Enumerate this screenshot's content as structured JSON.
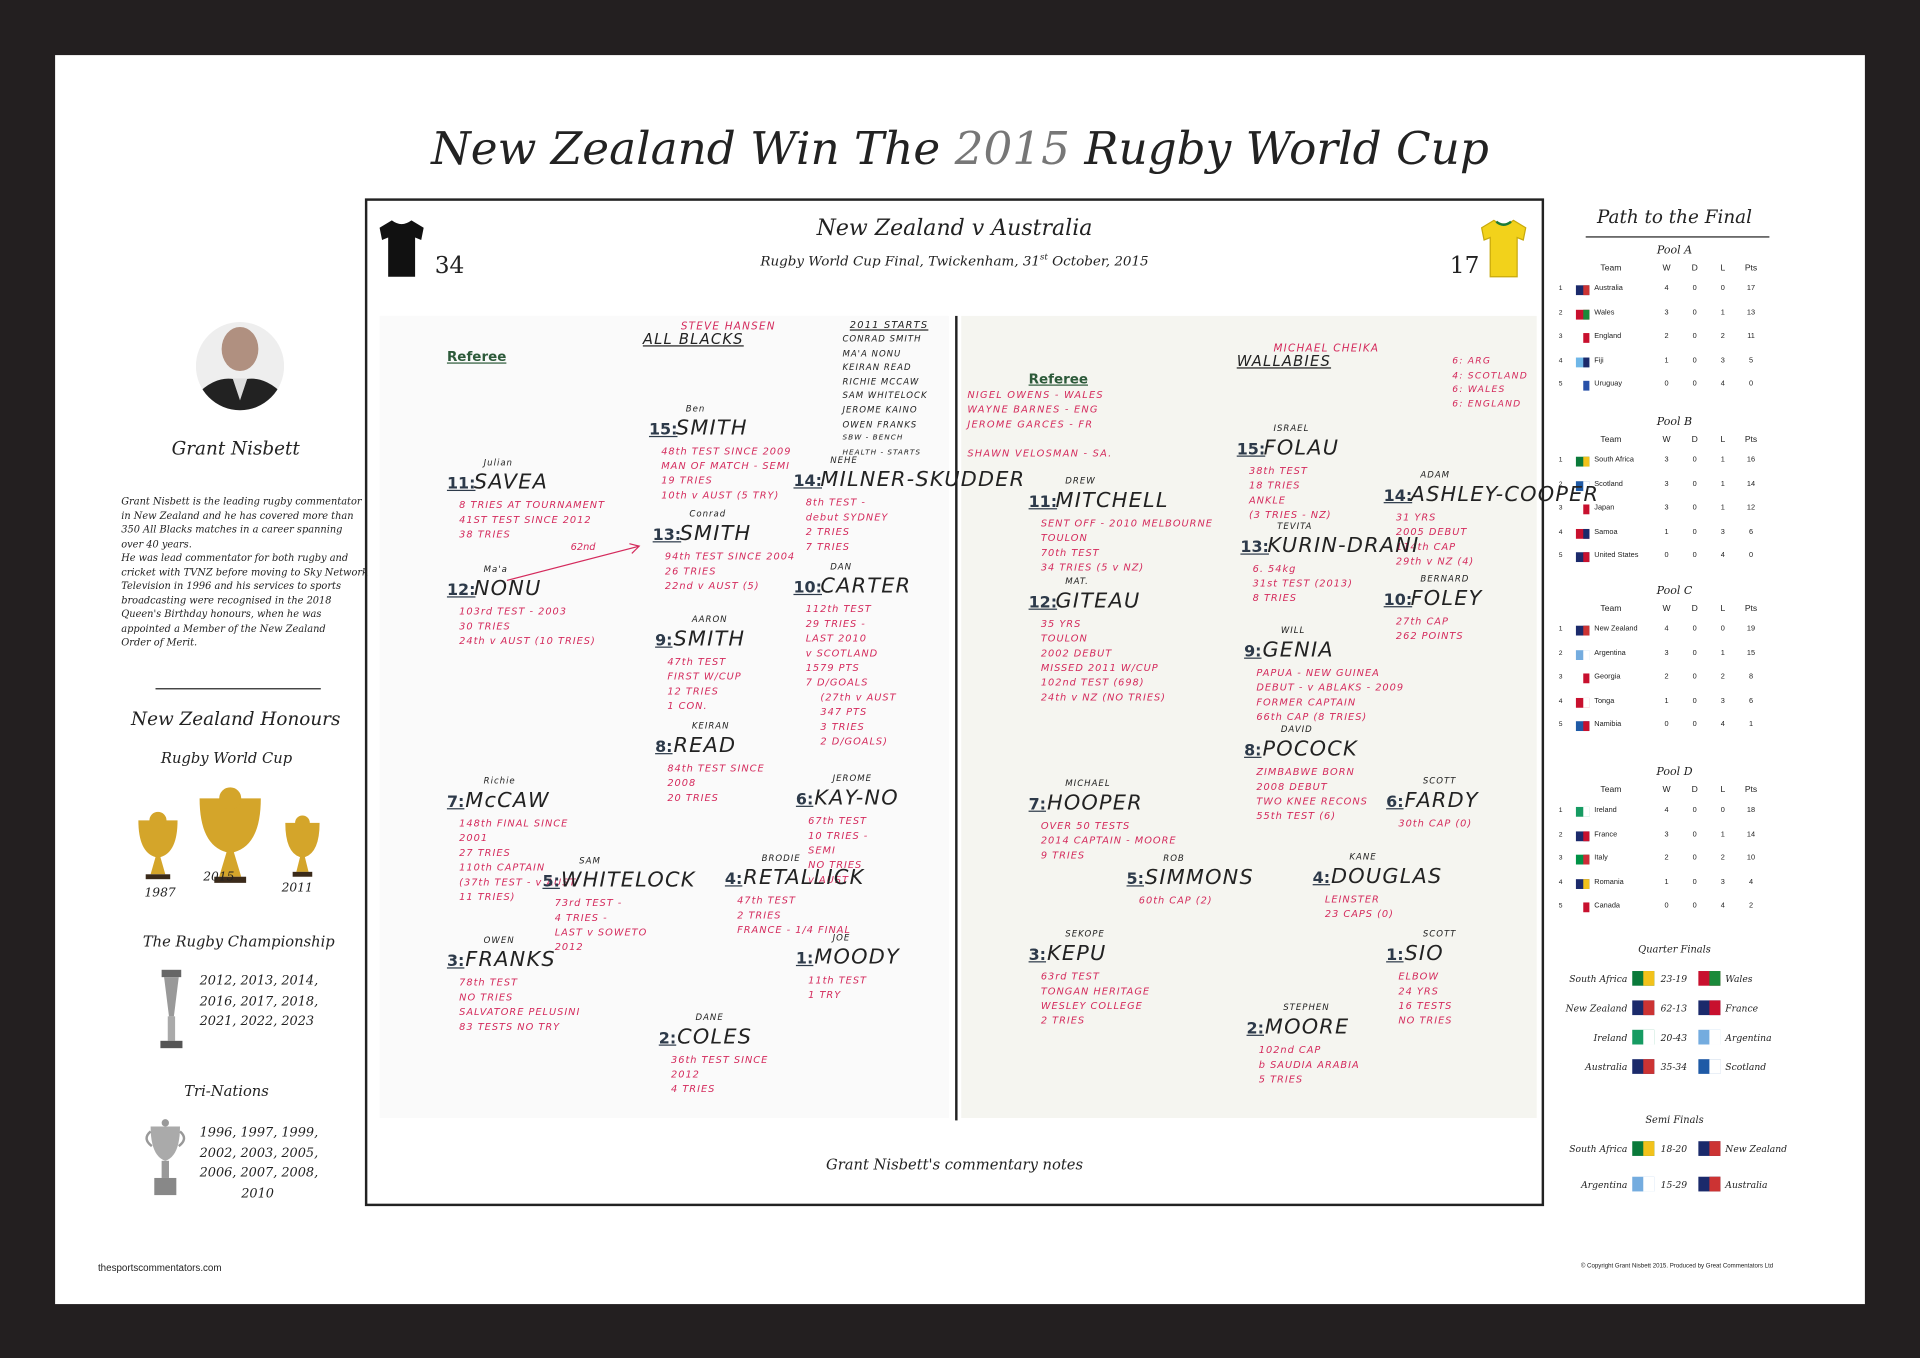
{
  "header": {
    "title_start": "New Zealand Win The",
    "title_year": "2015",
    "title_end": "Rugby World Cup"
  },
  "commentator": {
    "name": "Grant Nisbett",
    "bio": [
      "Grant Nisbett is the leading rugby commentator",
      "in New Zealand and he has covered more than",
      "350 All Blacks matches in a career spanning",
      "over 40 years.",
      "He was lead commentator for both rugby and",
      "cricket with TVNZ before moving to Sky Network",
      "Television in 1996 and his services to sports",
      "broadcasting were recognised in the 2018",
      "Queen's Birthday honours, when he was",
      "appointed a Member of the New Zealand",
      "Order of Merit."
    ]
  },
  "honours": {
    "title": "New Zealand Honours",
    "world_cup": {
      "title": "Rugby World Cup",
      "years": [
        "1987",
        "2015",
        "2011"
      ]
    },
    "championship": {
      "title": "The Rugby Championship",
      "years": [
        "2012, 2013, 2014,",
        "2016, 2017, 2018,",
        "2021, 2022, 2023"
      ]
    },
    "tri_nations": {
      "title": "Tri-Nations",
      "years": [
        "1996, 1997, 1999,",
        "2002, 2003, 2005,",
        "2006, 2007, 2008,",
        "2010"
      ]
    }
  },
  "match": {
    "title": "New Zealand v Australia",
    "subtitle_start": "Rugby World Cup Final, Twickenham, 31",
    "subtitle_sup": "st",
    "subtitle_end": " October, 2015",
    "home_score": "34",
    "away_score": "17",
    "caption": "Grant Nisbett's commentary notes"
  },
  "left_page": {
    "coach": "STEVE HANSEN",
    "team": "ALL BLACKS",
    "referee": "Referee",
    "annotation": "62nd",
    "starters_title": "2011 STARTS",
    "starters": [
      "CONRAD SMITH",
      "MA'A NONU",
      "KEIRAN READ",
      "RICHIE MCCAW",
      "SAM WHITELOCK",
      "JEROME KAINO",
      "OWEN FRANKS",
      "SBW - BENCH",
      "HEALTH - STARTS"
    ],
    "players": [
      {
        "number": "15:",
        "first_name": "Ben",
        "name": "SMITH",
        "notes": [
          "48th TEST SINCE 2009",
          "MAN OF MATCH - SEMI",
          "19 TRIES",
          "10th v AUST (5 TRY)"
        ]
      },
      {
        "number": "11:",
        "first_name": "Julian",
        "name": "SAVEA",
        "notes": [
          "8 TRIES AT TOURNAMENT",
          "41ST TEST SINCE 2012",
          "38 TRIES"
        ]
      },
      {
        "number": "14:",
        "first_name": "NEHE",
        "name": "MILNER-SKUDDER",
        "notes": [
          "8th TEST -",
          "debut SYDNEY",
          "2 TRIES",
          "7 TRIES"
        ]
      },
      {
        "number": "13:",
        "first_name": "Conrad",
        "name": "SMITH",
        "notes": [
          "94th TEST SINCE 2004",
          "26 TRIES",
          "22nd v AUST (5)"
        ]
      },
      {
        "number": "12:",
        "first_name": "Ma'a",
        "name": "NONU",
        "notes": [
          "103rd TEST - 2003",
          "30 TRIES",
          "24th v AUST (10 TRIES)"
        ]
      },
      {
        "number": "10:",
        "first_name": "DAN",
        "name": "CARTER",
        "notes": [
          "112th TEST",
          "29 TRIES -",
          "LAST 2010",
          "v SCOTLAND",
          "1579 PTS",
          "7 D/GOALS",
          "(27th v AUST",
          "347 PTS",
          "3 TRIES",
          "2 D/GOALS)"
        ]
      },
      {
        "number": "9:",
        "first_name": "AARON",
        "name": "SMITH",
        "notes": [
          "47th TEST",
          "FIRST W/CUP",
          "12 TRIES",
          "1 CON."
        ]
      },
      {
        "number": "8:",
        "first_name": "KEIRAN",
        "name": "READ",
        "notes": [
          "84th TEST SINCE",
          "2008",
          "20 TRIES"
        ]
      },
      {
        "number": "7:",
        "first_name": "Richie",
        "name": "McCAW",
        "notes": [
          "148th FINAL SINCE",
          "2001",
          "27 TRIES",
          "110th CAPTAIN",
          "(37th TEST - v AUST",
          "11 TRIES)"
        ]
      },
      {
        "number": "6:",
        "first_name": "JEROME",
        "name": "KAY-NO",
        "notes": [
          "67th TEST",
          "10 TRIES -",
          "SEMI",
          "NO TRIES",
          "v AUST"
        ]
      },
      {
        "number": "5:",
        "first_name": "SAM",
        "name": "WHITELOCK",
        "notes": [
          "73rd TEST -",
          "4 TRIES -",
          "LAST v SOWETO",
          "2012"
        ]
      },
      {
        "number": "4:",
        "first_name": "BRODIE",
        "name": "RETALLICK",
        "notes": [
          "47th TEST",
          "2 TRIES",
          "FRANCE - 1/4 FINAL"
        ]
      },
      {
        "number": "3:",
        "first_name": "OWEN",
        "name": "FRANKS",
        "notes": [
          "78th TEST",
          "NO TRIES",
          "SALVATORE PELUSINI",
          "83 TESTS NO TRY"
        ]
      },
      {
        "number": "1:",
        "first_name": "JOE",
        "name": "MOODY",
        "notes": [
          "11th TEST",
          "1 TRY"
        ]
      },
      {
        "number": "2:",
        "first_name": "DANE",
        "name": "COLES",
        "notes": [
          "36th TEST SINCE",
          "2012",
          "4 TRIES"
        ]
      }
    ]
  },
  "right_page": {
    "coach": "MICHAEL CHEIKA",
    "team": "WALLABIES",
    "referee": "Referee",
    "record": [
      "6: ARG",
      "4: SCOTLAND",
      "6: WALES",
      "6: ENGLAND"
    ],
    "referee_notes": [
      "NIGEL OWENS - WALES",
      "WAYNE BARNES - ENG",
      "JEROME GARCES - FR",
      "SHAWN VELOSMAN - SA."
    ],
    "players": [
      {
        "number": "15:",
        "first_name": "ISRAEL",
        "name": "FOLAU",
        "notes": [
          "38th TEST",
          "18 TRIES",
          "ANKLE",
          "(3 TRIES - NZ)"
        ]
      },
      {
        "number": "11:",
        "first_name": "DREW",
        "name": "MITCHELL",
        "notes": [
          "SENT OFF - 2010 MELBOURNE",
          "TOULON",
          "70th TEST",
          "34 TRIES (5 v NZ)"
        ]
      },
      {
        "number": "14:",
        "first_name": "ADAM",
        "name": "ASHLEY-COOPER",
        "notes": [
          "31 YRS",
          "2005 DEBUT",
          "114th CAP",
          "29th v NZ (4)"
        ]
      },
      {
        "number": "13:",
        "first_name": "TEVITA",
        "name": "KURIN-DRANI",
        "notes": [
          "6. 54kg",
          "31st TEST (2013)",
          "8 TRIES"
        ]
      },
      {
        "number": "10:",
        "first_name": "BERNARD",
        "name": "FOLEY",
        "notes": [
          "27th CAP",
          "262 POINTS"
        ]
      },
      {
        "number": "12:",
        "first_name": "MAT.",
        "name": "GITEAU",
        "notes": [
          "35 YRS",
          "TOULON",
          "2002 DEBUT",
          "MISSED 2011 W/CUP",
          "102nd TEST (698)",
          "24th v NZ (NO TRIES)"
        ]
      },
      {
        "number": "9:",
        "first_name": "WILL",
        "name": "GENIA",
        "notes": [
          "PAPUA - NEW GUINEA",
          "DEBUT - v ABLAKS - 2009",
          "FORMER CAPTAIN",
          "66th CAP (8 TRIES)"
        ]
      },
      {
        "number": "8:",
        "first_name": "DAVID",
        "name": "POCOCK",
        "notes": [
          "ZIMBABWE BORN",
          "2008 DEBUT",
          "TWO KNEE RECONS",
          "55th TEST (6)"
        ]
      },
      {
        "number": "7:",
        "first_name": "MICHAEL",
        "name": "HOOPER",
        "notes": [
          "OVER 50 TESTS",
          "2014 CAPTAIN - MOORE",
          "9 TRIES"
        ]
      },
      {
        "number": "6:",
        "first_name": "SCOTT",
        "name": "FARDY",
        "notes": [
          "30th CAP (0)"
        ]
      },
      {
        "number": "5:",
        "first_name": "ROB",
        "name": "SIMMONS",
        "notes": [
          "60th CAP (2)"
        ]
      },
      {
        "number": "4:",
        "first_name": "KANE",
        "name": "DOUGLAS",
        "notes": [
          "LEINSTER",
          "23 CAPS (0)"
        ]
      },
      {
        "number": "3:",
        "first_name": "SEKOPE",
        "name": "KEPU",
        "notes": [
          "63rd TEST",
          "TONGAN HERITAGE",
          "WESLEY COLLEGE",
          "2 TRIES"
        ]
      },
      {
        "number": "1:",
        "first_name": "SCOTT",
        "name": "SIO",
        "notes": [
          "ELBOW",
          "24 YRS",
          "16 TESTS",
          "NO TRIES"
        ]
      },
      {
        "number": "2:",
        "first_name": "STEPHEN",
        "name": "MOORE",
        "notes": [
          "102nd CAP",
          "b SAUDIA ARABIA",
          "5 TRIES"
        ]
      }
    ]
  },
  "path": {
    "title": "Path to the Final",
    "columns": [
      "Team",
      "W",
      "D",
      "L",
      "Pts"
    ],
    "pools": [
      {
        "title": "Pool A",
        "rows": [
          [
            1,
            "Australia",
            4,
            0,
            0,
            17
          ],
          [
            2,
            "Wales",
            3,
            0,
            1,
            13
          ],
          [
            3,
            "England",
            2,
            0,
            2,
            11
          ],
          [
            4,
            "Fiji",
            1,
            0,
            3,
            5
          ],
          [
            5,
            "Uruguay",
            0,
            0,
            4,
            0
          ]
        ]
      },
      {
        "title": "Pool B",
        "rows": [
          [
            1,
            "South Africa",
            3,
            0,
            1,
            16
          ],
          [
            2,
            "Scotland",
            3,
            0,
            1,
            14
          ],
          [
            3,
            "Japan",
            3,
            0,
            1,
            12
          ],
          [
            4,
            "Samoa",
            1,
            0,
            3,
            6
          ],
          [
            5,
            "United States",
            0,
            0,
            4,
            0
          ]
        ]
      },
      {
        "title": "Pool C",
        "rows": [
          [
            1,
            "New Zealand",
            4,
            0,
            0,
            19
          ],
          [
            2,
            "Argentina",
            3,
            0,
            1,
            15
          ],
          [
            3,
            "Georgia",
            2,
            0,
            2,
            8
          ],
          [
            4,
            "Tonga",
            1,
            0,
            3,
            6
          ],
          [
            5,
            "Namibia",
            0,
            0,
            4,
            1
          ]
        ]
      },
      {
        "title": "Pool D",
        "rows": [
          [
            1,
            "Ireland",
            4,
            0,
            0,
            18
          ],
          [
            2,
            "France",
            3,
            0,
            1,
            14
          ],
          [
            3,
            "Italy",
            2,
            0,
            2,
            10
          ],
          [
            4,
            "Romania",
            1,
            0,
            3,
            4
          ],
          [
            5,
            "Canada",
            0,
            0,
            4,
            2
          ]
        ]
      }
    ],
    "quarter_finals": {
      "title": "Quarter Finals",
      "matches": [
        {
          "home": "South Africa",
          "score": "23-19",
          "away": "Wales"
        },
        {
          "home": "New Zealand",
          "score": "62-13",
          "away": "France"
        },
        {
          "home": "Ireland",
          "score": "20-43",
          "away": "Argentina"
        },
        {
          "home": "Australia",
          "score": "35-34",
          "away": "Scotland"
        }
      ]
    },
    "semi_finals": {
      "title": "Semi Finals",
      "matches": [
        {
          "home": "South Africa",
          "score": "18-20",
          "away": "New Zealand"
        },
        {
          "home": "Argentina",
          "score": "15-29",
          "away": "Australia"
        }
      ]
    }
  },
  "footer": {
    "website": "thesportscommentators.com",
    "copyright": "© Copyright Grant Nisbett 2015. Produced by Great Commentators Ltd"
  }
}
